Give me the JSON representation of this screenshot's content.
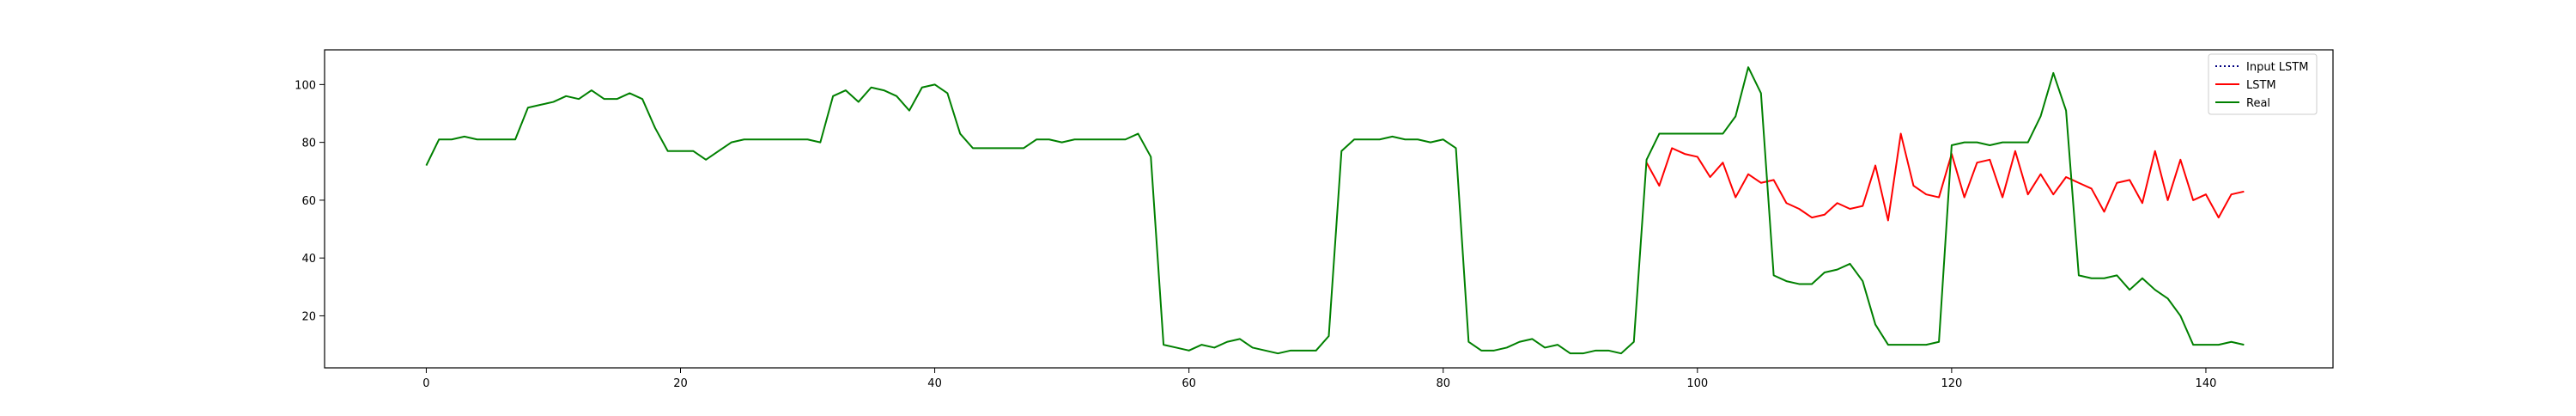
{
  "chart_data": {
    "type": "line",
    "title": "",
    "xlabel": "",
    "ylabel": "",
    "xlim": [
      -8,
      150
    ],
    "ylim": [
      2,
      112
    ],
    "xticks": [
      0,
      20,
      40,
      60,
      80,
      100,
      120,
      140
    ],
    "yticks": [
      20,
      40,
      60,
      80,
      100
    ],
    "grid": false,
    "legend_position": "top-right",
    "series": [
      {
        "name": "Input LSTM",
        "color": "#000080",
        "style": "dotted",
        "x": [],
        "y": []
      },
      {
        "name": "LSTM",
        "color": "#ff0000",
        "style": "solid",
        "x": [
          96,
          97,
          98,
          99,
          100,
          101,
          102,
          103,
          104,
          105,
          106,
          107,
          108,
          109,
          110,
          111,
          112,
          113,
          114,
          115,
          116,
          117,
          118,
          119,
          120,
          121,
          122,
          123,
          124,
          125,
          126,
          127,
          128,
          129,
          130,
          131,
          132,
          133,
          134,
          135,
          136,
          137,
          138,
          139,
          140,
          141,
          142,
          143
        ],
        "y": [
          73,
          65,
          78,
          76,
          75,
          68,
          73,
          61,
          69,
          66,
          67,
          59,
          57,
          54,
          55,
          59,
          57,
          58,
          72,
          53,
          83,
          65,
          62,
          61,
          76,
          61,
          73,
          74,
          61,
          77,
          62,
          69,
          62,
          68,
          66,
          64,
          56,
          66,
          67,
          59,
          77,
          60,
          74,
          60,
          62,
          54,
          62,
          63
        ]
      },
      {
        "name": "Real",
        "color": "#008000",
        "style": "solid",
        "x": [
          0,
          1,
          2,
          3,
          4,
          5,
          6,
          7,
          8,
          9,
          10,
          11,
          12,
          13,
          14,
          15,
          16,
          17,
          18,
          19,
          20,
          21,
          22,
          23,
          24,
          25,
          26,
          27,
          28,
          29,
          30,
          31,
          32,
          33,
          34,
          35,
          36,
          37,
          38,
          39,
          40,
          41,
          42,
          43,
          44,
          45,
          46,
          47,
          48,
          49,
          50,
          51,
          52,
          53,
          54,
          55,
          56,
          57,
          58,
          59,
          60,
          61,
          62,
          63,
          64,
          65,
          66,
          67,
          68,
          69,
          70,
          71,
          72,
          73,
          74,
          75,
          76,
          77,
          78,
          79,
          80,
          81,
          82,
          83,
          84,
          85,
          86,
          87,
          88,
          89,
          90,
          91,
          92,
          93,
          94,
          95,
          96,
          97,
          98,
          99,
          100,
          101,
          102,
          103,
          104,
          105,
          106,
          107,
          108,
          109,
          110,
          111,
          112,
          113,
          114,
          115,
          116,
          117,
          118,
          119,
          120,
          121,
          122,
          123,
          124,
          125,
          126,
          127,
          128,
          129,
          130,
          131,
          132,
          133,
          134,
          135,
          136,
          137,
          138,
          139,
          140,
          141,
          142,
          143
        ],
        "y": [
          72,
          81,
          81,
          82,
          81,
          81,
          81,
          81,
          92,
          93,
          94,
          96,
          95,
          98,
          95,
          95,
          97,
          95,
          85,
          77,
          77,
          77,
          74,
          77,
          80,
          81,
          81,
          81,
          81,
          81,
          81,
          80,
          96,
          98,
          94,
          99,
          98,
          96,
          91,
          99,
          100,
          97,
          83,
          78,
          78,
          78,
          78,
          78,
          81,
          81,
          80,
          81,
          81,
          81,
          81,
          81,
          83,
          75,
          10,
          9,
          8,
          10,
          9,
          11,
          12,
          9,
          8,
          7,
          8,
          8,
          8,
          13,
          77,
          81,
          81,
          81,
          82,
          81,
          81,
          80,
          81,
          78,
          11,
          8,
          8,
          9,
          11,
          12,
          9,
          10,
          7,
          7,
          8,
          8,
          7,
          11,
          74,
          83,
          83,
          83,
          83,
          83,
          83,
          89,
          106,
          97,
          34,
          32,
          31,
          31,
          35,
          36,
          38,
          32,
          17,
          10,
          10,
          10,
          10,
          11,
          79,
          80,
          80,
          79,
          80,
          80,
          80,
          89,
          104,
          91,
          34,
          33,
          33,
          34,
          29,
          33,
          29,
          26,
          20,
          10,
          10,
          10,
          11,
          10
        ]
      }
    ]
  }
}
